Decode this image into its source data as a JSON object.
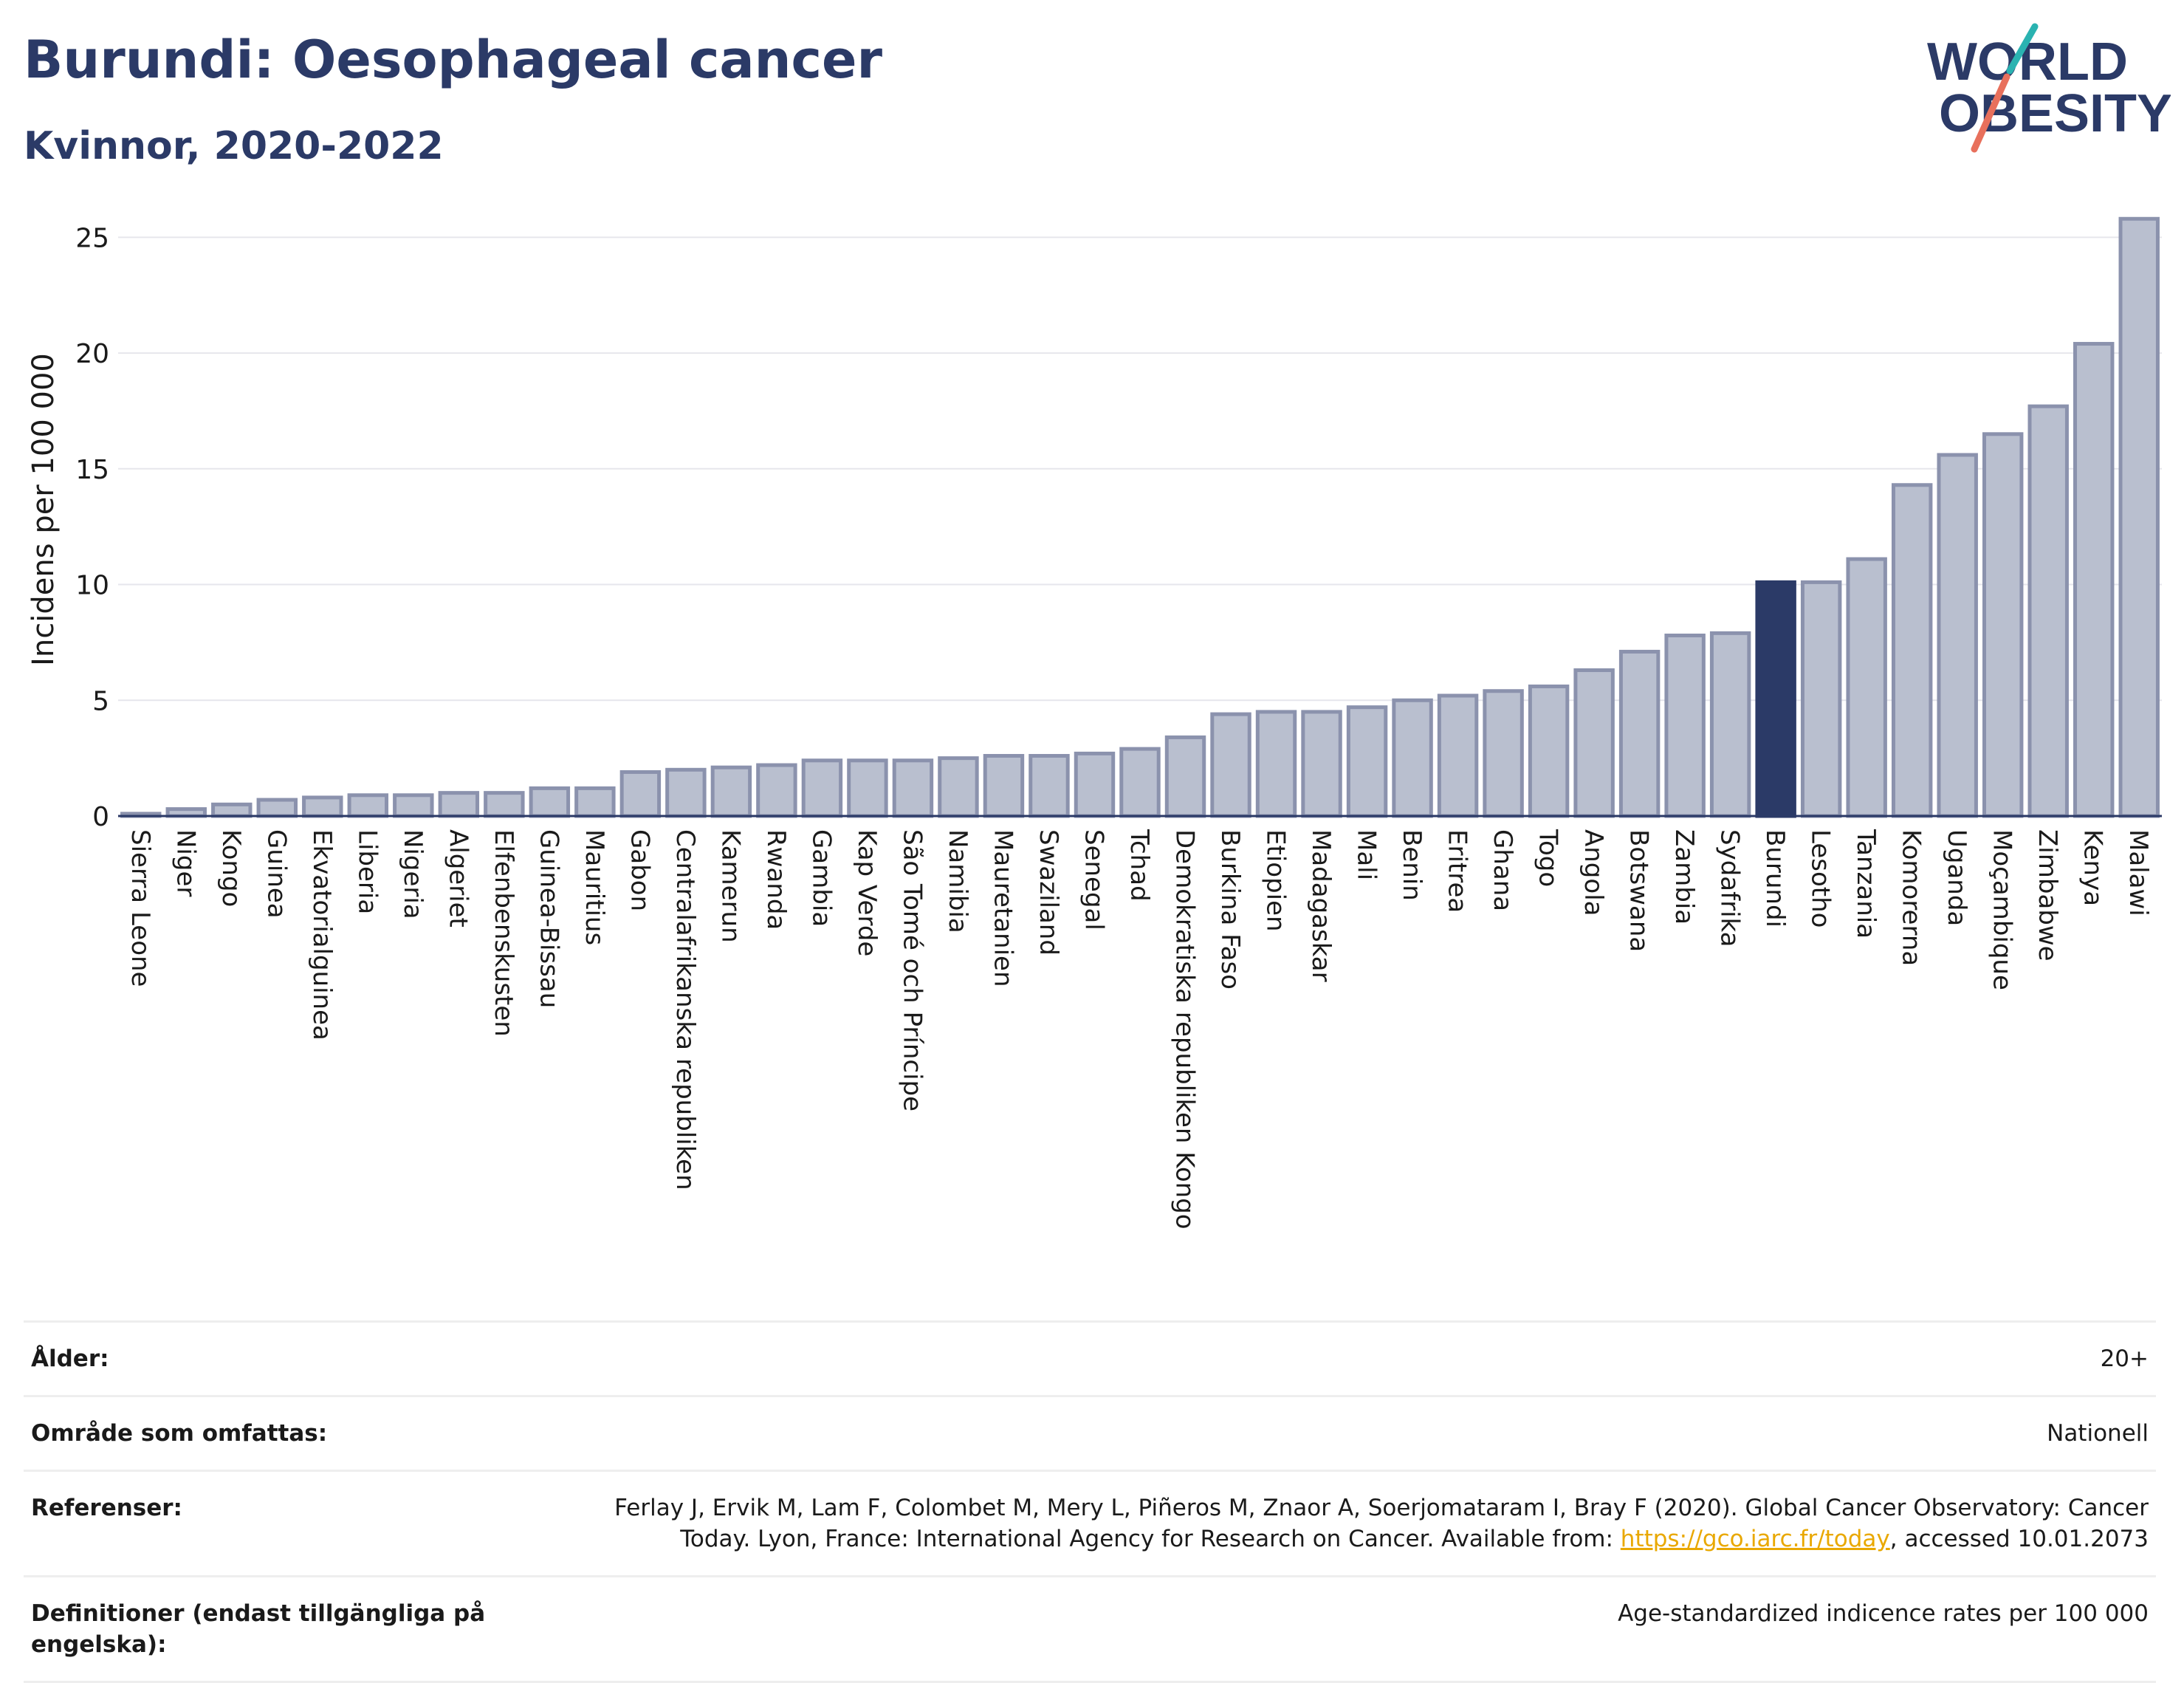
{
  "header": {
    "title": "Burundi: Oesophageal cancer",
    "subtitle": "Kvinnor, 2020-2022"
  },
  "logo": {
    "line1": "WORLD",
    "line2": "OBESITY",
    "slash_top_color": "#2ab3b1",
    "slash_bottom_color": "#e8705c",
    "text_color": "#2b3a67"
  },
  "colors": {
    "bar": "#b9bfcf",
    "bar_border": "#8b92ad",
    "highlight": "#2b3a67",
    "grid": "#e6e6ec",
    "axis": "#2b3a67"
  },
  "chart_data": {
    "type": "bar",
    "ylabel": "Incidens per 100 000",
    "ylim": [
      0,
      26
    ],
    "yticks": [
      0,
      5,
      10,
      15,
      20,
      25
    ],
    "grid": true,
    "highlight": "Burundi",
    "categories": [
      "Sierra Leone",
      "Niger",
      "Kongo",
      "Guinea",
      "Ekvatorialguinea",
      "Liberia",
      "Nigeria",
      "Algeriet",
      "Elfenbenskusten",
      "Guinea-Bissau",
      "Mauritius",
      "Gabon",
      "Centralafrikanska republiken",
      "Kamerun",
      "Rwanda",
      "Gambia",
      "Kap Verde",
      "São Tomé och Príncipe",
      "Namibia",
      "Mauretanien",
      "Swaziland",
      "Senegal",
      "Tchad",
      "Demokratiska republiken Kongo",
      "Burkina Faso",
      "Etiopien",
      "Madagaskar",
      "Mali",
      "Benin",
      "Eritrea",
      "Ghana",
      "Togo",
      "Angola",
      "Botswana",
      "Zambia",
      "Sydafrika",
      "Burundi",
      "Lesotho",
      "Tanzania",
      "Komorerna",
      "Uganda",
      "Moçambique",
      "Zimbabwe",
      "Kenya",
      "Malawi"
    ],
    "values": [
      0.1,
      0.3,
      0.5,
      0.7,
      0.8,
      0.9,
      0.9,
      1.0,
      1.0,
      1.2,
      1.2,
      1.9,
      2.0,
      2.1,
      2.2,
      2.4,
      2.4,
      2.4,
      2.5,
      2.6,
      2.6,
      2.7,
      2.9,
      3.4,
      4.4,
      4.5,
      4.5,
      4.7,
      5.0,
      5.2,
      5.4,
      5.6,
      6.3,
      7.1,
      7.8,
      7.9,
      10.1,
      10.1,
      11.1,
      14.3,
      15.6,
      16.5,
      17.7,
      20.4,
      25.8
    ]
  },
  "info": {
    "age_label": "Ålder:",
    "age_value": "20+",
    "area_label": "Område som omfattas:",
    "area_value": "Nationell",
    "ref_label": "Referenser:",
    "ref_text_1": "Ferlay J, Ervik M, Lam F, Colombet M, Mery L, Piñeros M, Znaor A, Soerjomataram I, Bray F (2020). Global Cancer Observatory: Cancer Today. Lyon, France: International Agency for Research on Cancer. Available from: ",
    "ref_link": "https://gco.iarc.fr/today",
    "ref_text_2": ", accessed 10.01.2073",
    "def_label": "Definitioner (endast tillgängliga på engelska):",
    "def_value": "Age-standardized indicence rates per 100 000"
  }
}
